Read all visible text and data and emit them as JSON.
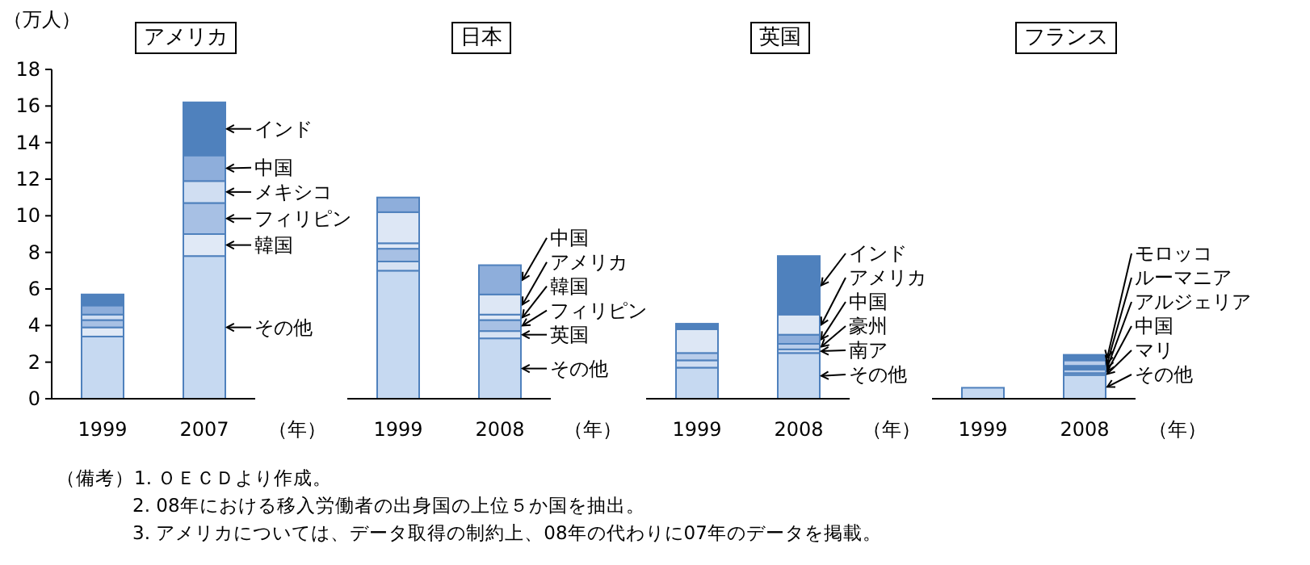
{
  "chart_data": [
    {
      "type": "bar",
      "stacked": true,
      "title": "アメリカ",
      "ylabel": "（万人）",
      "xlabel": "（年）",
      "categories": [
        "1999",
        "2007"
      ],
      "ylim": [
        0,
        18
      ],
      "yticks": [
        0,
        2,
        4,
        6,
        8,
        10,
        12,
        14,
        16,
        18
      ],
      "series": [
        {
          "name": "その他",
          "color": "#c6d9f1",
          "values": [
            3.4,
            7.8
          ]
        },
        {
          "name": "韓国",
          "color": "#e0e9f6",
          "values": [
            0.5,
            1.2
          ]
        },
        {
          "name": "フィリピン",
          "color": "#a7c0e4",
          "values": [
            0.4,
            1.7
          ]
        },
        {
          "name": "メキシコ",
          "color": "#d0def2",
          "values": [
            0.3,
            1.2
          ]
        },
        {
          "name": "中国",
          "color": "#8eaedb",
          "values": [
            0.5,
            1.4
          ]
        },
        {
          "name": "インド",
          "color": "#4f81bd",
          "values": [
            0.6,
            2.9
          ]
        }
      ],
      "annotations": [
        "（備考）1. ＯＥＣＤより作成。",
        "2. 08年における移入労働者の出身国の上位５か国を抽出。",
        "3. アメリカについては、データ取得の制約上、08年の代わりに07年のデータを掲載。"
      ]
    },
    {
      "type": "bar",
      "stacked": true,
      "title": "日本",
      "xlabel": "（年）",
      "categories": [
        "1999",
        "2008"
      ],
      "ylim": [
        0,
        18
      ],
      "tick_labels": "x",
      "series": [
        {
          "name": "その他",
          "color": "#c6d9f1",
          "values": [
            7.0,
            3.3
          ]
        },
        {
          "name": "英国",
          "color": "#d6e2f3",
          "values": [
            0.5,
            0.4
          ]
        },
        {
          "name": "フィリピン",
          "color": "#a7c0e4",
          "values": [
            0.7,
            0.6
          ]
        },
        {
          "name": "韓国",
          "color": "#e0e9f6",
          "values": [
            0.3,
            0.3
          ]
        },
        {
          "name": "アメリカ",
          "color": "#dde7f5",
          "values": [
            1.7,
            1.1
          ]
        },
        {
          "name": "中国",
          "color": "#8eaedb",
          "values": [
            0.8,
            1.6
          ]
        }
      ]
    },
    {
      "type": "bar",
      "stacked": true,
      "title": "英国",
      "xlabel": "（年）",
      "categories": [
        "1999",
        "2008"
      ],
      "ylim": [
        0,
        18
      ],
      "tick_labels": "x",
      "series": [
        {
          "name": "その他",
          "color": "#c6d9f1",
          "values": [
            1.7,
            2.5
          ]
        },
        {
          "name": "南ア",
          "color": "#d0def2",
          "values": [
            0.4,
            0.2
          ]
        },
        {
          "name": "豪州",
          "color": "#b9cdea",
          "values": [
            0.4,
            0.3
          ]
        },
        {
          "name": "中国",
          "color": "#8eaedb",
          "values": [
            0,
            0.5
          ]
        },
        {
          "name": "アメリカ",
          "color": "#dde7f5",
          "values": [
            1.3,
            1.1
          ]
        },
        {
          "name": "インド",
          "color": "#4f81bd",
          "values": [
            0.3,
            3.2
          ]
        }
      ]
    },
    {
      "type": "bar",
      "stacked": true,
      "title": "フランス",
      "xlabel": "（年）",
      "categories": [
        "1999",
        "2008"
      ],
      "ylim": [
        0,
        18
      ],
      "tick_labels": "x",
      "series": [
        {
          "name": "その他",
          "color": "#c6d9f1",
          "values": [
            0.6,
            1.3
          ]
        },
        {
          "name": "マリ",
          "color": "#dde7f5",
          "values": [
            0,
            0.1
          ]
        },
        {
          "name": "中国",
          "color": "#b9cdea",
          "values": [
            0,
            0.2
          ]
        },
        {
          "name": "アルジェリア",
          "color": "#4f81bd",
          "values": [
            0,
            0.2
          ]
        },
        {
          "name": "ルーマニア",
          "color": "#b9cdea",
          "values": [
            0,
            0.3
          ]
        },
        {
          "name": "モロッコ",
          "color": "#4f81bd",
          "values": [
            0,
            0.3
          ]
        }
      ]
    }
  ]
}
